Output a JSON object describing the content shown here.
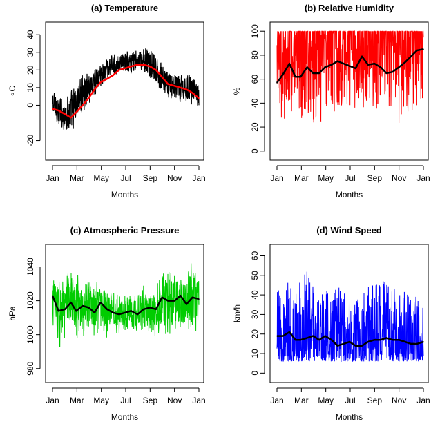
{
  "chart_data": [
    {
      "type": "line",
      "title": "(a) Temperature",
      "xlabel": "Months",
      "ylabel": "∘C",
      "x_ticks": [
        "Jan",
        "Mar",
        "May",
        "Jul",
        "Sep",
        "Nov",
        "Jan"
      ],
      "xlim": [
        0,
        365
      ],
      "ylim": [
        -28,
        44
      ],
      "y_ticks": [
        -20,
        0,
        10,
        20,
        30,
        40
      ],
      "series": [
        {
          "kind": "daily-range",
          "color": "#000000",
          "x_day": [
            0,
            15,
            31,
            46,
            59,
            75,
            90,
            105,
            120,
            136,
            151,
            166,
            181,
            196,
            212,
            227,
            243,
            258,
            273,
            288,
            304,
            319,
            334,
            349,
            365
          ],
          "low": [
            -10,
            -14,
            -17,
            -18,
            -12,
            -5,
            0,
            5,
            8,
            14,
            16,
            18,
            17,
            16,
            18,
            17,
            14,
            10,
            5,
            3,
            2,
            0,
            0,
            -1,
            -2
          ],
          "high": [
            11,
            8,
            5,
            10,
            14,
            19,
            21,
            23,
            25,
            28,
            29,
            30,
            31,
            32,
            32,
            33,
            34,
            28,
            25,
            22,
            19,
            19,
            20,
            20,
            12
          ]
        },
        {
          "kind": "smooth",
          "color": "#ff0000",
          "x_day": [
            0,
            15,
            31,
            46,
            59,
            75,
            90,
            105,
            120,
            136,
            151,
            166,
            181,
            196,
            212,
            227,
            243,
            258,
            273,
            288,
            304,
            319,
            334,
            349,
            365
          ],
          "values": [
            -2,
            -3,
            -5,
            -7,
            -4,
            0,
            4,
            9,
            13,
            15,
            17,
            20,
            21,
            22,
            23,
            23,
            22,
            20,
            16,
            12,
            11,
            10,
            9,
            7,
            4
          ]
        }
      ]
    },
    {
      "type": "line",
      "title": "(b) Relative Humidity",
      "xlabel": "Months",
      "ylabel": "%",
      "x_ticks": [
        "Jan",
        "Mar",
        "May",
        "Jul",
        "Sep",
        "Nov",
        "Jan"
      ],
      "xlim": [
        0,
        365
      ],
      "ylim": [
        -3,
        103
      ],
      "y_ticks": [
        0,
        20,
        40,
        60,
        80,
        100
      ],
      "series": [
        {
          "kind": "daily-range",
          "color": "#ff0000",
          "x_day": [
            0,
            15,
            31,
            46,
            59,
            75,
            90,
            105,
            120,
            136,
            151,
            166,
            181,
            196,
            212,
            227,
            243,
            258,
            273,
            288,
            304,
            319,
            334,
            349,
            365
          ],
          "low": [
            27,
            25,
            30,
            28,
            22,
            18,
            20,
            17,
            25,
            28,
            30,
            32,
            32,
            35,
            30,
            28,
            30,
            25,
            30,
            35,
            18,
            30,
            30,
            32,
            35
          ],
          "high": [
            100,
            100,
            100,
            100,
            100,
            100,
            100,
            100,
            100,
            100,
            100,
            100,
            100,
            100,
            100,
            100,
            100,
            100,
            100,
            100,
            100,
            100,
            100,
            100,
            100
          ]
        },
        {
          "kind": "smooth",
          "color": "#000000",
          "x_day": [
            0,
            15,
            31,
            46,
            59,
            75,
            90,
            105,
            120,
            136,
            151,
            166,
            181,
            196,
            212,
            227,
            243,
            258,
            273,
            288,
            304,
            319,
            334,
            349,
            365
          ],
          "values": [
            57,
            64,
            73,
            62,
            62,
            70,
            65,
            65,
            70,
            72,
            75,
            73,
            71,
            69,
            79,
            72,
            73,
            70,
            65,
            66,
            70,
            74,
            79,
            84,
            85
          ]
        }
      ]
    },
    {
      "type": "line",
      "title": "(c) Atmospheric Pressure",
      "xlabel": "Months",
      "ylabel": "hPa",
      "x_ticks": [
        "Jan",
        "Mar",
        "May",
        "Jul",
        "Sep",
        "Nov",
        "Jan"
      ],
      "xlim": [
        0,
        365
      ],
      "ylim": [
        975,
        1050
      ],
      "y_ticks": [
        980,
        1000,
        1020,
        1040
      ],
      "series": [
        {
          "kind": "daily-range",
          "color": "#00cc00",
          "x_day": [
            0,
            15,
            31,
            46,
            59,
            75,
            90,
            105,
            120,
            136,
            151,
            166,
            181,
            196,
            212,
            227,
            243,
            258,
            273,
            288,
            304,
            319,
            334,
            349,
            365
          ],
          "low": [
            1003,
            988,
            995,
            1000,
            995,
            996,
            1000,
            998,
            1000,
            995,
            1002,
            1000,
            1000,
            1002,
            1000,
            1002,
            998,
            998,
            1000,
            996,
            1000,
            1000,
            1000,
            990,
            1005
          ],
          "high": [
            1038,
            1037,
            1035,
            1041,
            1039,
            1030,
            1038,
            1030,
            1035,
            1030,
            1027,
            1025,
            1025,
            1028,
            1025,
            1030,
            1028,
            1030,
            1040,
            1045,
            1037,
            1035,
            1038,
            1046,
            1038
          ]
        },
        {
          "kind": "smooth",
          "color": "#000000",
          "x_day": [
            0,
            15,
            31,
            46,
            59,
            75,
            90,
            105,
            120,
            136,
            151,
            166,
            181,
            196,
            212,
            227,
            243,
            258,
            273,
            288,
            304,
            319,
            334,
            349,
            365
          ],
          "values": [
            1023,
            1014,
            1015,
            1019,
            1014,
            1017,
            1016,
            1013,
            1019,
            1015,
            1013,
            1012,
            1013,
            1014,
            1012,
            1015,
            1016,
            1015,
            1022,
            1020,
            1020,
            1023,
            1018,
            1022,
            1021
          ]
        }
      ]
    },
    {
      "type": "line",
      "title": "(d) Wind Speed",
      "xlabel": "Months",
      "ylabel": "km/h",
      "x_ticks": [
        "Jan",
        "Mar",
        "May",
        "Jul",
        "Sep",
        "Nov",
        "Jan"
      ],
      "xlim": [
        0,
        365
      ],
      "ylim": [
        -2,
        63
      ],
      "y_ticks": [
        0,
        10,
        20,
        30,
        40,
        50,
        60
      ],
      "series": [
        {
          "kind": "daily-range",
          "color": "#0000ff",
          "x_day": [
            0,
            15,
            31,
            46,
            59,
            75,
            90,
            105,
            120,
            136,
            151,
            166,
            181,
            196,
            212,
            227,
            243,
            258,
            273,
            288,
            304,
            319,
            334,
            349,
            365
          ],
          "low": [
            6,
            6,
            6,
            6,
            6,
            6,
            6,
            6,
            6,
            6,
            6,
            6,
            6,
            6,
            6,
            6,
            6,
            6,
            6,
            6,
            6,
            6,
            6,
            6,
            6
          ],
          "high": [
            48,
            45,
            47,
            42,
            48,
            52,
            49,
            46,
            44,
            40,
            47,
            43,
            38,
            42,
            40,
            45,
            50,
            48,
            46,
            44,
            49,
            46,
            43,
            41,
            40
          ]
        },
        {
          "kind": "smooth",
          "color": "#000000",
          "x_day": [
            0,
            15,
            31,
            46,
            59,
            75,
            90,
            105,
            120,
            136,
            151,
            166,
            181,
            196,
            212,
            227,
            243,
            258,
            273,
            288,
            304,
            319,
            334,
            349,
            365
          ],
          "values": [
            19,
            19,
            21,
            17,
            17,
            18,
            19,
            17,
            19,
            17,
            14,
            15,
            16,
            14,
            14,
            16,
            17,
            17,
            18,
            17,
            17,
            16,
            15,
            15,
            16
          ]
        }
      ]
    }
  ]
}
